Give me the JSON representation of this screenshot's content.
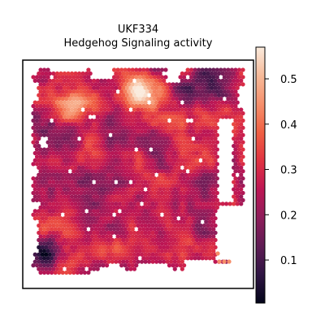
{
  "chart_data": {
    "type": "heatmap",
    "title_line1": "UKF334",
    "title_line2": "Hedgehog Signaling activity",
    "xlabel": "",
    "ylabel": "",
    "colorbar": {
      "ticks": [
        0.1,
        0.2,
        0.3,
        0.4,
        0.5
      ],
      "tick_labels": [
        "0.1",
        "0.2",
        "0.3",
        "0.4",
        "0.5"
      ],
      "range": [
        0.005,
        0.57
      ],
      "colormap": "rocket"
    },
    "colormap_stops": [
      "#03051a",
      "#2f1543",
      "#5f1c54",
      "#8e1d5a",
      "#bd1654",
      "#e13342",
      "#f06043",
      "#f6906c",
      "#f7bb9a",
      "#faebdd"
    ],
    "frame_color": "#000000",
    "spot_grid": {
      "cols": 58,
      "rows": 58,
      "value_regions": [
        {
          "region": "upper-left tissue",
          "value": 0.45
        },
        {
          "region": "upper-center tissue",
          "value": 0.5
        },
        {
          "region": "center tissue",
          "value": 0.28
        },
        {
          "region": "lower-left tissue",
          "value": 0.07
        },
        {
          "region": "upper-right tissue",
          "value": 0.1
        }
      ]
    }
  }
}
